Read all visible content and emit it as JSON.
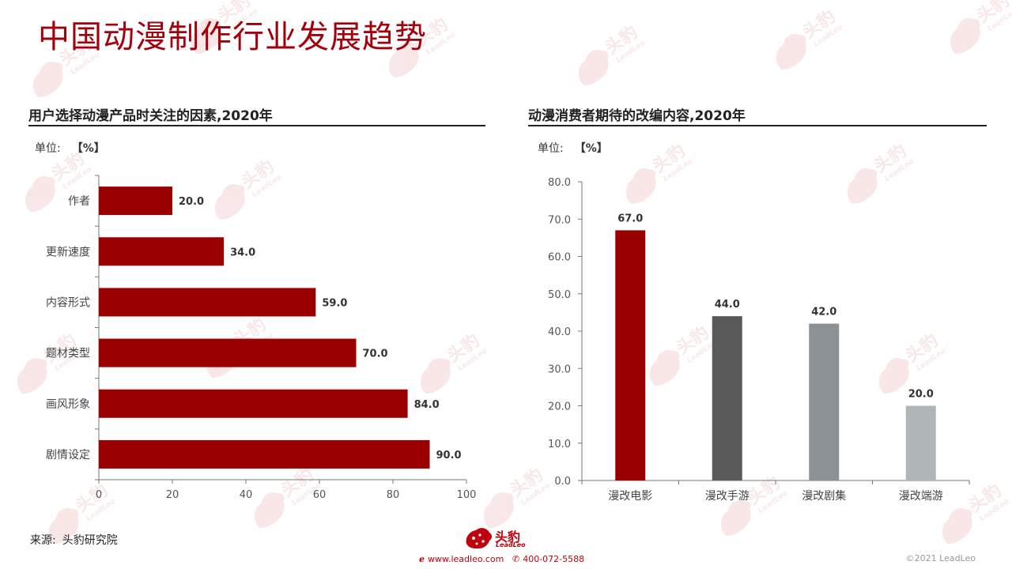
{
  "page_title": "中国动漫制作行业发展趋势",
  "source": {
    "label": "来源:",
    "value": "头豹研究院"
  },
  "footer": {
    "logo_cn": "头豹",
    "logo_en": "LeadLeo",
    "website": "www.leadleo.com",
    "phone": "400-072-5588",
    "copyright": "©2021 LeadLeo"
  },
  "watermark": {
    "cn": "头豹",
    "en": "LeadLeo"
  },
  "chart_data": [
    {
      "type": "bar",
      "orientation": "horizontal",
      "title": "用户选择动漫产品时关注的因素,2020年",
      "unit_label": "单位:",
      "unit_value": "【%】",
      "categories": [
        "作者",
        "更新速度",
        "内容形式",
        "题材类型",
        "画风形象",
        "剧情设定"
      ],
      "values": [
        20.0,
        34.0,
        59.0,
        70.0,
        84.0,
        90.0
      ],
      "value_labels": [
        "20.0",
        "34.0",
        "59.0",
        "70.0",
        "84.0",
        "90.0"
      ],
      "xlim": [
        0,
        100
      ],
      "ticks": [
        "0",
        "20",
        "40",
        "60",
        "80",
        "100"
      ],
      "bar_color": "#9b0000",
      "grid": false
    },
    {
      "type": "bar",
      "orientation": "vertical",
      "title": "动漫消费者期待的改编内容,2020年",
      "unit_label": "单位:",
      "unit_value": "【%】",
      "categories": [
        "漫改电影",
        "漫改手游",
        "漫改剧集",
        "漫改端游"
      ],
      "values": [
        67.0,
        44.0,
        42.0,
        20.0
      ],
      "value_labels": [
        "67.0",
        "44.0",
        "42.0",
        "20.0"
      ],
      "ylim": [
        0,
        80
      ],
      "ticks": [
        "0.0",
        "10.0",
        "20.0",
        "30.0",
        "40.0",
        "50.0",
        "60.0",
        "70.0",
        "80.0"
      ],
      "bar_colors": [
        "#9b0000",
        "#595959",
        "#8c9196",
        "#b0b5b8"
      ],
      "grid": false
    }
  ]
}
